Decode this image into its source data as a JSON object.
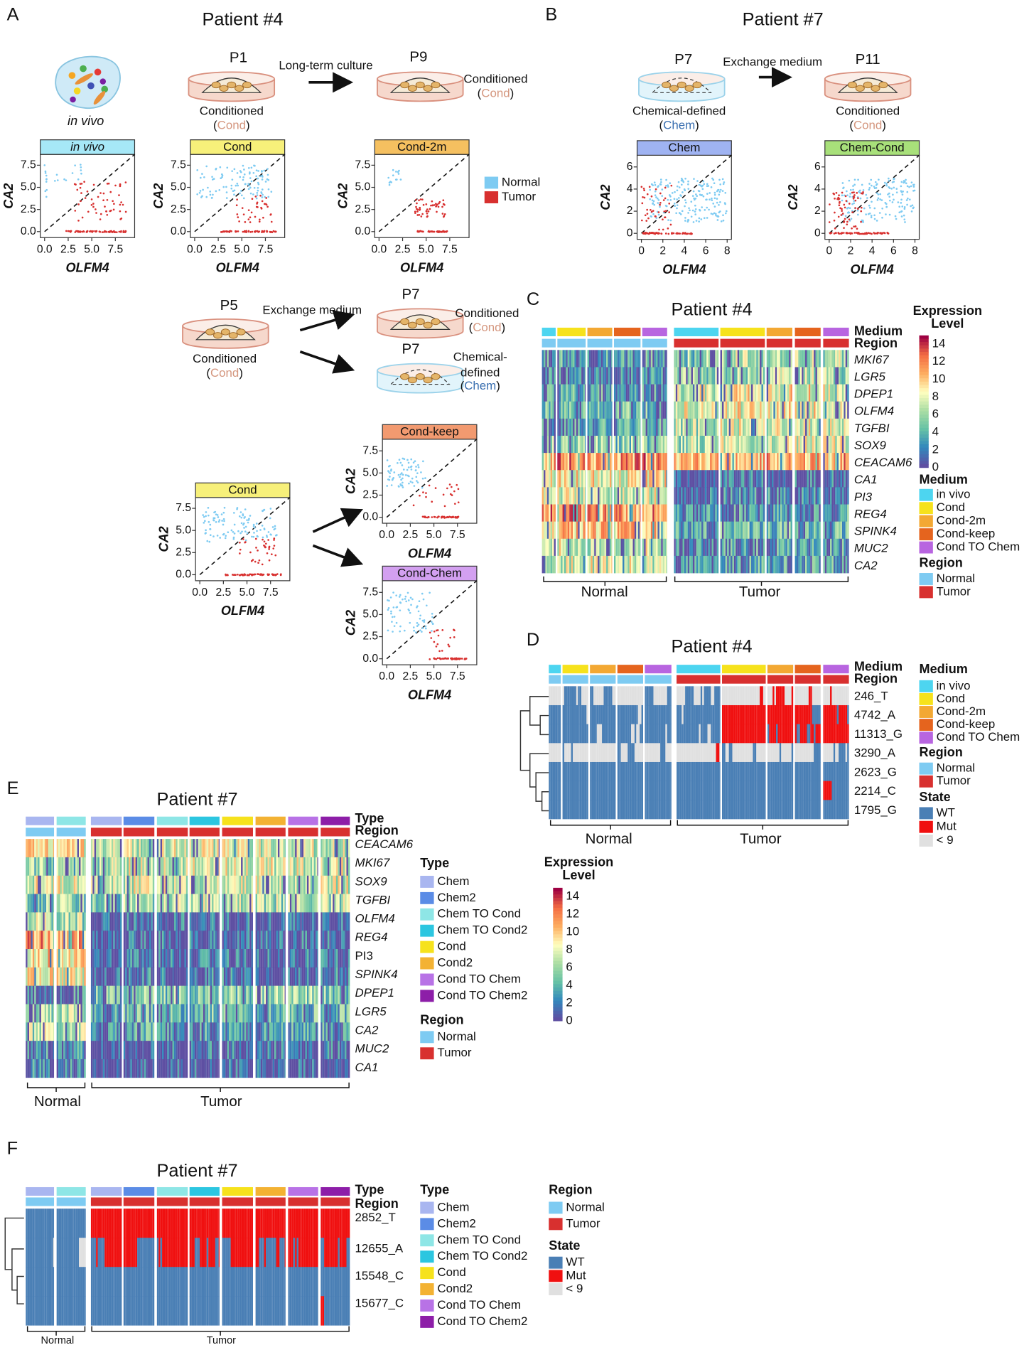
{
  "colormap": [
    "#5e4fa2",
    "#3288bd",
    "#66c2a5",
    "#abdda4",
    "#ffffbf",
    "#fdae61",
    "#f46d43",
    "#9e0142"
  ],
  "A": {
    "letter": "A",
    "title": "Patient #4",
    "in_vivo": "in vivo",
    "dishes": [
      {
        "name": "P1",
        "caption": [
          "Conditioned"
        ],
        "medium": [
          "(",
          "Cond",
          ")"
        ]
      },
      {
        "name": "P9",
        "caption": [
          "Conditioned"
        ],
        "medium": [
          "(",
          "Cond",
          ")"
        ]
      }
    ],
    "arrow": "Long-term culture",
    "plots": [
      {
        "title": "in vivo",
        "color": "#a6e8f7",
        "xlabel": "OLFM4",
        "ylabel": "CA2",
        "xticks": [
          "0.0",
          "2.5",
          "5.0",
          "7.5"
        ],
        "yticks": [
          "0.0",
          "2.5",
          "5.0",
          "7.5"
        ]
      },
      {
        "title": "Cond",
        "color": "#f7f07a",
        "xlabel": "OLFM4",
        "ylabel": "CA2",
        "xticks": [
          "0.0",
          "2.5",
          "5.0",
          "7.5"
        ],
        "yticks": [
          "0.0",
          "2.5",
          "5.0",
          "7.5"
        ]
      },
      {
        "title": "Cond-2m",
        "color": "#f5c060",
        "xlabel": "OLFM4",
        "ylabel": "CA2",
        "xticks": [
          "0.0",
          "2.5",
          "5.0",
          "7.5"
        ],
        "yticks": [
          "0.0",
          "2.5",
          "5.0",
          "7.5"
        ]
      }
    ],
    "legend": [
      {
        "label": "Normal",
        "color": "#7ecbf2"
      },
      {
        "label": "Tumor",
        "color": "#d8302f"
      }
    ]
  },
  "B": {
    "letter": "B",
    "title": "Patient #7",
    "dishes": [
      {
        "name": "P7",
        "caption": [
          "Chemical-defined"
        ],
        "medium": [
          "(",
          "Chem",
          ")"
        ]
      },
      {
        "name": "P11",
        "caption": [
          "Conditioned"
        ],
        "medium": [
          "(",
          "Cond",
          ")"
        ]
      }
    ],
    "arrow": "Exchange medium",
    "plots": [
      {
        "title": "Chem",
        "color": "#9fb3f2",
        "xlabel": "OLFM4",
        "ylabel": "CA2",
        "xticks": [
          "0",
          "2",
          "4",
          "6",
          "8"
        ],
        "yticks": [
          "0",
          "2",
          "4",
          "6"
        ]
      },
      {
        "title": "Chem-Cond",
        "color": "#a8e07a",
        "xlabel": "OLFM4",
        "ylabel": "CA2",
        "xticks": [
          "0",
          "2",
          "4",
          "6",
          "8"
        ],
        "yticks": [
          "0",
          "2",
          "4",
          "6"
        ]
      }
    ]
  },
  "A2": {
    "dishes": [
      {
        "name": "P5",
        "caption": [
          "Conditioned"
        ],
        "medium": [
          "(",
          "Cond",
          ")"
        ]
      },
      {
        "name": "P7",
        "caption": [
          "Conditioned"
        ],
        "medium": [
          "(",
          "Cond",
          ")"
        ]
      },
      {
        "name": "P7",
        "caption": [
          "Chemical-",
          "defined"
        ],
        "medium": [
          "(",
          "Chem",
          ")"
        ]
      }
    ],
    "arrow": "Exchange medium",
    "plots": [
      {
        "title": "Cond",
        "color": "#f7f07a",
        "xlabel": "OLFM4",
        "ylabel": "CA2",
        "xticks": [
          "0.0",
          "2.5",
          "5.0",
          "7.5"
        ],
        "yticks": [
          "0.0",
          "2.5",
          "5.0",
          "7.5"
        ]
      },
      {
        "title": "Cond-keep",
        "color": "#f29a70",
        "xlabel": "OLFM4",
        "ylabel": "CA2",
        "xticks": [
          "0.0",
          "2.5",
          "5.0",
          "7.5"
        ],
        "yticks": [
          "0.0",
          "2.5",
          "5.0",
          "7.5"
        ]
      },
      {
        "title": "Cond-Chem",
        "color": "#d3a0f0",
        "xlabel": "OLFM4",
        "ylabel": "CA2",
        "xticks": [
          "0.0",
          "2.5",
          "5.0",
          "7.5"
        ],
        "yticks": [
          "0.0",
          "2.5",
          "5.0",
          "7.5"
        ]
      }
    ]
  },
  "C": {
    "letter": "C",
    "title": "Patient #4",
    "annotations": [
      "Medium",
      "Region"
    ],
    "genes": [
      {
        "name": "MKI67",
        "color": "#222"
      },
      {
        "name": "LGR5",
        "color": "#222"
      },
      {
        "name": "DPEP1",
        "color": "#2b6cb0"
      },
      {
        "name": "OLFM4",
        "color": "#222"
      },
      {
        "name": "TGFBI",
        "color": "#222"
      },
      {
        "name": "SOX9",
        "color": "#222"
      },
      {
        "name": "CEACAM6",
        "color": "#c8102e"
      },
      {
        "name": "CA1",
        "color": "#222"
      },
      {
        "name": "PI3",
        "color": "#222"
      },
      {
        "name": "REG4",
        "color": "#222"
      },
      {
        "name": "SPINK4",
        "color": "#222"
      },
      {
        "name": "MUC2",
        "color": "#222"
      },
      {
        "name": "CA2",
        "color": "#222"
      }
    ],
    "groups": [
      "Normal",
      "Tumor"
    ],
    "legend_title": [
      "Expression",
      "Level"
    ],
    "scale": [
      "14",
      "12",
      "10",
      "8",
      "6",
      "4",
      "2",
      "0"
    ],
    "medium_title": "Medium",
    "medium": [
      {
        "label": "in vivo",
        "color": "#4dd5f0"
      },
      {
        "label": "Cond",
        "color": "#f6e21c"
      },
      {
        "label": "Cond-2m",
        "color": "#f3a833"
      },
      {
        "label": "Cond-keep",
        "color": "#e5641e"
      },
      {
        "label": "Cond TO Chem",
        "color": "#b865e0"
      }
    ],
    "region_title": "Region",
    "region": [
      {
        "label": "Normal",
        "color": "#7ecbf2"
      },
      {
        "label": "Tumor",
        "color": "#d8302f"
      }
    ]
  },
  "D": {
    "letter": "D",
    "title": "Patient #4",
    "annotations": [
      "Medium",
      "Region"
    ],
    "rows": [
      "246_T",
      "4742_A",
      "11313_G",
      "3290_A",
      "2623_G",
      "2214_C",
      "1795_G"
    ],
    "groups": [
      "Normal",
      "Tumor"
    ],
    "medium_title": "Medium",
    "medium": [
      {
        "label": "in vivo",
        "color": "#4dd5f0"
      },
      {
        "label": "Cond",
        "color": "#f6e21c"
      },
      {
        "label": "Cond-2m",
        "color": "#f3a833"
      },
      {
        "label": "Cond-keep",
        "color": "#e5641e"
      },
      {
        "label": "Cond TO Chem",
        "color": "#b865e0"
      }
    ],
    "region_title": "Region",
    "region": [
      {
        "label": "Normal",
        "color": "#7ecbf2"
      },
      {
        "label": "Tumor",
        "color": "#d8302f"
      }
    ],
    "state_title": "State",
    "state": [
      {
        "label": "WT",
        "color": "#4a7fb5"
      },
      {
        "label": "Mut",
        "color": "#f01010"
      },
      {
        "label": "< 9",
        "color": "#e0e0e0"
      }
    ]
  },
  "E": {
    "letter": "E",
    "title": "Patient #7",
    "annotations": [
      "Type",
      "Region"
    ],
    "genes": [
      {
        "name": "CEACAM6",
        "color": "#c8102e"
      },
      {
        "name": "MKI67",
        "color": "#222"
      },
      {
        "name": "SOX9",
        "color": "#222"
      },
      {
        "name": "TGFBI",
        "color": "#222"
      },
      {
        "name": "OLFM4",
        "color": "#222"
      },
      {
        "name": "REG4",
        "color": "#222"
      },
      {
        "name": "PI3",
        "color": "#222"
      },
      {
        "name": "SPINK4",
        "color": "#222"
      },
      {
        "name": "DPEP1",
        "color": "#2b6cb0"
      },
      {
        "name": "LGR5",
        "color": "#222"
      },
      {
        "name": "CA2",
        "color": "#222"
      },
      {
        "name": "MUC2",
        "color": "#222"
      },
      {
        "name": "CA1",
        "color": "#222"
      }
    ],
    "groups": [
      "Normal",
      "Tumor"
    ],
    "type_title": "Type",
    "types": [
      {
        "label": "Chem",
        "color": "#a9b6f0"
      },
      {
        "label": "Chem2",
        "color": "#5b8ce6"
      },
      {
        "label": "Chem TO Cond",
        "color": "#8ee6e6"
      },
      {
        "label": "Chem TO Cond2",
        "color": "#2cc6e0"
      },
      {
        "label": "Cond",
        "color": "#f6e21c"
      },
      {
        "label": "Cond2",
        "color": "#f3b233"
      },
      {
        "label": "Cond TO Chem",
        "color": "#b872e6"
      },
      {
        "label": "Cond TO Chem2",
        "color": "#8d1ea8"
      }
    ],
    "region_title": "Region",
    "region": [
      {
        "label": "Normal",
        "color": "#7ecbf2"
      },
      {
        "label": "Tumor",
        "color": "#d8302f"
      }
    ],
    "legend_title": [
      "Expression",
      "Level"
    ],
    "scale": [
      "14",
      "12",
      "10",
      "8",
      "6",
      "4",
      "2",
      "0"
    ]
  },
  "F": {
    "letter": "F",
    "title": "Patient #7",
    "annotations": [
      "Type",
      "Region"
    ],
    "rows": [
      "2852_T",
      "12655_A",
      "15548_C",
      "15677_C"
    ],
    "groups": [
      "Normal",
      "Tumor"
    ],
    "type_title": "Type",
    "types": [
      {
        "label": "Chem",
        "color": "#a9b6f0"
      },
      {
        "label": "Chem2",
        "color": "#5b8ce6"
      },
      {
        "label": "Chem TO Cond",
        "color": "#8ee6e6"
      },
      {
        "label": "Chem TO Cond2",
        "color": "#2cc6e0"
      },
      {
        "label": "Cond",
        "color": "#f6e21c"
      },
      {
        "label": "Cond2",
        "color": "#f3b233"
      },
      {
        "label": "Cond TO Chem",
        "color": "#b872e6"
      },
      {
        "label": "Cond TO Chem2",
        "color": "#8d1ea8"
      }
    ],
    "region_title": "Region",
    "region": [
      {
        "label": "Normal",
        "color": "#7ecbf2"
      },
      {
        "label": "Tumor",
        "color": "#d8302f"
      }
    ],
    "state_title": "State",
    "state": [
      {
        "label": "WT",
        "color": "#4a7fb5"
      },
      {
        "label": "Mut",
        "color": "#f01010"
      },
      {
        "label": "< 9",
        "color": "#e0e0e0"
      }
    ]
  }
}
